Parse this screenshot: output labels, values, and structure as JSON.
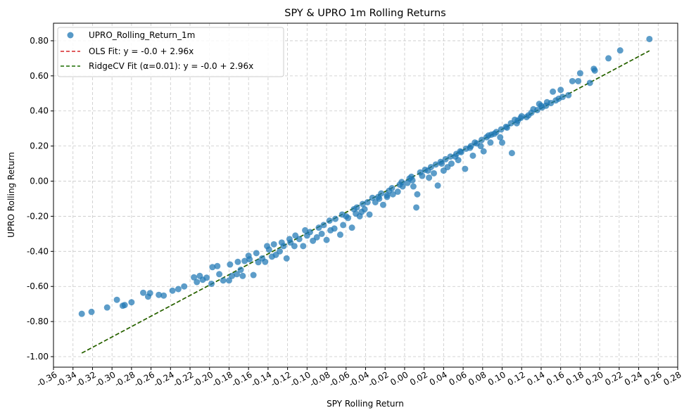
{
  "chart_data": {
    "type": "scatter",
    "title": "SPY & UPRO 1m Rolling Returns",
    "xlabel": "SPY Rolling Return",
    "ylabel": "UPRO Rolling Return",
    "xlim": [
      -0.36,
      0.28
    ],
    "ylim": [
      -1.06,
      0.9
    ],
    "x_ticks": [
      "-0.36",
      "-0.34",
      "-0.32",
      "-0.30",
      "-0.28",
      "-0.26",
      "-0.24",
      "-0.22",
      "-0.20",
      "-0.18",
      "-0.16",
      "-0.14",
      "-0.12",
      "-0.10",
      "-0.08",
      "-0.06",
      "-0.04",
      "-0.02",
      "0.00",
      "0.02",
      "0.04",
      "0.06",
      "0.08",
      "0.10",
      "0.12",
      "0.14",
      "0.16",
      "0.18",
      "0.20",
      "0.22",
      "0.24",
      "0.26",
      "0.28"
    ],
    "y_ticks": [
      "-1.00",
      "-0.80",
      "-0.60",
      "-0.40",
      "-0.20",
      "0.00",
      "0.20",
      "0.40",
      "0.60",
      "0.80"
    ],
    "grid": true,
    "legend_position": "top-left",
    "colors": {
      "points": "#1f77b4",
      "ols": "#d62728",
      "ridge": "#1a6b00",
      "grid": "#c8c8c8"
    },
    "series": [
      {
        "name": "UPRO_Rolling_Return_1m",
        "kind": "scatter",
        "points": [
          [
            -0.331,
            -0.756
          ],
          [
            -0.321,
            -0.745
          ],
          [
            -0.305,
            -0.72
          ],
          [
            -0.295,
            -0.676
          ],
          [
            -0.289,
            -0.71
          ],
          [
            -0.287,
            -0.706
          ],
          [
            -0.28,
            -0.69
          ],
          [
            -0.268,
            -0.636
          ],
          [
            -0.263,
            -0.658
          ],
          [
            -0.261,
            -0.638
          ],
          [
            -0.252,
            -0.648
          ],
          [
            -0.247,
            -0.652
          ],
          [
            -0.238,
            -0.624
          ],
          [
            -0.232,
            -0.615
          ],
          [
            -0.226,
            -0.6
          ],
          [
            -0.216,
            -0.548
          ],
          [
            -0.213,
            -0.575
          ],
          [
            -0.21,
            -0.54
          ],
          [
            -0.207,
            -0.562
          ],
          [
            -0.203,
            -0.55
          ],
          [
            -0.198,
            -0.585
          ],
          [
            -0.197,
            -0.49
          ],
          [
            -0.192,
            -0.484
          ],
          [
            -0.19,
            -0.53
          ],
          [
            -0.186,
            -0.566
          ],
          [
            -0.18,
            -0.566
          ],
          [
            -0.179,
            -0.475
          ],
          [
            -0.171,
            -0.46
          ],
          [
            -0.168,
            -0.505
          ],
          [
            -0.166,
            -0.54
          ],
          [
            -0.164,
            -0.455
          ],
          [
            -0.16,
            -0.425
          ],
          [
            -0.159,
            -0.445
          ],
          [
            -0.155,
            -0.535
          ],
          [
            -0.15,
            -0.462
          ],
          [
            -0.146,
            -0.44
          ],
          [
            -0.143,
            -0.46
          ],
          [
            -0.139,
            -0.39
          ],
          [
            -0.136,
            -0.43
          ],
          [
            -0.132,
            -0.42
          ],
          [
            -0.128,
            -0.4
          ],
          [
            -0.124,
            -0.37
          ],
          [
            -0.121,
            -0.44
          ],
          [
            -0.117,
            -0.35
          ],
          [
            -0.113,
            -0.37
          ],
          [
            -0.108,
            -0.33
          ],
          [
            -0.104,
            -0.37
          ],
          [
            -0.1,
            -0.31
          ],
          [
            -0.094,
            -0.34
          ],
          [
            -0.09,
            -0.32
          ],
          [
            -0.085,
            -0.3
          ],
          [
            -0.08,
            -0.335
          ],
          [
            -0.076,
            -0.28
          ],
          [
            -0.072,
            -0.27
          ],
          [
            -0.066,
            -0.305
          ],
          [
            -0.063,
            -0.25
          ],
          [
            -0.058,
            -0.21
          ],
          [
            -0.054,
            -0.265
          ],
          [
            -0.05,
            -0.185
          ],
          [
            -0.046,
            -0.2
          ],
          [
            -0.041,
            -0.16
          ],
          [
            -0.036,
            -0.19
          ],
          [
            -0.03,
            -0.12
          ],
          [
            -0.026,
            -0.1
          ],
          [
            -0.022,
            -0.135
          ],
          [
            -0.018,
            -0.08
          ],
          [
            -0.012,
            -0.075
          ],
          [
            -0.007,
            -0.06
          ],
          [
            -0.002,
            -0.03
          ],
          [
            0.003,
            -0.01
          ],
          [
            0.008,
            0.005
          ],
          [
            0.012,
            -0.15
          ],
          [
            0.013,
            -0.075
          ],
          [
            0.018,
            0.03
          ],
          [
            0.024,
            0.06
          ],
          [
            0.03,
            0.045
          ],
          [
            0.034,
            -0.025
          ],
          [
            0.038,
            0.1
          ],
          [
            0.044,
            0.08
          ],
          [
            0.048,
            0.1
          ],
          [
            0.052,
            0.14
          ],
          [
            0.058,
            0.165
          ],
          [
            0.062,
            0.07
          ],
          [
            0.067,
            0.19
          ],
          [
            0.072,
            0.22
          ],
          [
            0.078,
            0.2
          ],
          [
            0.081,
            0.17
          ],
          [
            0.086,
            0.26
          ],
          [
            0.092,
            0.27
          ],
          [
            0.1,
            0.22
          ],
          [
            0.104,
            0.31
          ],
          [
            0.11,
            0.16
          ],
          [
            0.113,
            0.35
          ],
          [
            0.12,
            0.37
          ],
          [
            0.125,
            0.365
          ],
          [
            0.132,
            0.41
          ],
          [
            0.138,
            0.44
          ],
          [
            0.146,
            0.45
          ],
          [
            0.152,
            0.51
          ],
          [
            0.16,
            0.52
          ],
          [
            0.168,
            0.49
          ],
          [
            0.172,
            0.57
          ],
          [
            0.178,
            0.57
          ],
          [
            0.18,
            0.615
          ],
          [
            0.19,
            0.56
          ],
          [
            0.194,
            0.64
          ],
          [
            0.209,
            0.7
          ],
          [
            0.221,
            0.745
          ],
          [
            0.251,
            0.81
          ],
          [
            0.195,
            0.63
          ],
          [
            -0.177,
            -0.54
          ],
          [
            -0.172,
            -0.53
          ],
          [
            -0.152,
            -0.41
          ],
          [
            -0.141,
            -0.37
          ],
          [
            -0.118,
            -0.33
          ],
          [
            -0.097,
            -0.29
          ],
          [
            -0.083,
            -0.25
          ],
          [
            -0.071,
            -0.215
          ],
          [
            -0.06,
            -0.2
          ],
          [
            -0.049,
            -0.15
          ],
          [
            -0.038,
            -0.12
          ],
          [
            -0.027,
            -0.09
          ],
          [
            -0.016,
            -0.055
          ],
          [
            -0.005,
            -0.02
          ],
          [
            0.005,
            0.015
          ],
          [
            0.016,
            0.05
          ],
          [
            0.027,
            0.08
          ],
          [
            0.037,
            0.11
          ],
          [
            0.047,
            0.14
          ],
          [
            0.057,
            0.17
          ],
          [
            0.068,
            0.2
          ],
          [
            0.079,
            0.235
          ],
          [
            0.089,
            0.265
          ],
          [
            0.099,
            0.295
          ],
          [
            0.109,
            0.33
          ],
          [
            0.119,
            0.36
          ],
          [
            0.13,
            0.39
          ],
          [
            0.141,
            0.42
          ],
          [
            0.15,
            0.445
          ],
          [
            0.158,
            0.47
          ],
          [
            -0.134,
            -0.36
          ],
          [
            -0.126,
            -0.35
          ],
          [
            -0.112,
            -0.31
          ],
          [
            -0.102,
            -0.28
          ],
          [
            -0.088,
            -0.265
          ],
          [
            -0.077,
            -0.225
          ],
          [
            -0.064,
            -0.19
          ],
          [
            -0.052,
            -0.16
          ],
          [
            -0.043,
            -0.13
          ],
          [
            -0.033,
            -0.095
          ],
          [
            -0.024,
            -0.07
          ],
          [
            -0.013,
            -0.04
          ],
          [
            -0.003,
            -0.005
          ],
          [
            0.007,
            0.025
          ],
          [
            0.021,
            0.065
          ],
          [
            0.032,
            0.095
          ],
          [
            0.042,
            0.125
          ],
          [
            0.053,
            0.155
          ],
          [
            0.063,
            0.185
          ],
          [
            0.074,
            0.215
          ],
          [
            0.084,
            0.25
          ],
          [
            0.094,
            0.28
          ],
          [
            0.105,
            0.305
          ],
          [
            0.116,
            0.345
          ],
          [
            0.127,
            0.375
          ],
          [
            0.136,
            0.405
          ],
          [
            0.145,
            0.43
          ],
          [
            0.155,
            0.46
          ],
          [
            0.162,
            0.48
          ],
          [
            0.14,
            0.43
          ],
          [
            -0.044,
            -0.175
          ],
          [
            -0.018,
            -0.09
          ],
          [
            0.009,
            -0.03
          ],
          [
            0.025,
            0.02
          ],
          [
            0.04,
            0.06
          ],
          [
            0.055,
            0.12
          ],
          [
            0.07,
            0.145
          ],
          [
            0.088,
            0.22
          ],
          [
            0.098,
            0.25
          ],
          [
            0.115,
            0.33
          ]
        ]
      },
      {
        "name": "OLS Fit: y = -0.0 + 2.96x",
        "kind": "line",
        "intercept": -0.0,
        "slope": 2.96,
        "x_range": [
          -0.331,
          0.251
        ]
      },
      {
        "name": "RidgeCV Fit (α=0.01): y = -0.0 + 2.96x",
        "kind": "line",
        "intercept": -0.0,
        "slope": 2.96,
        "x_range": [
          -0.331,
          0.251
        ]
      }
    ]
  }
}
